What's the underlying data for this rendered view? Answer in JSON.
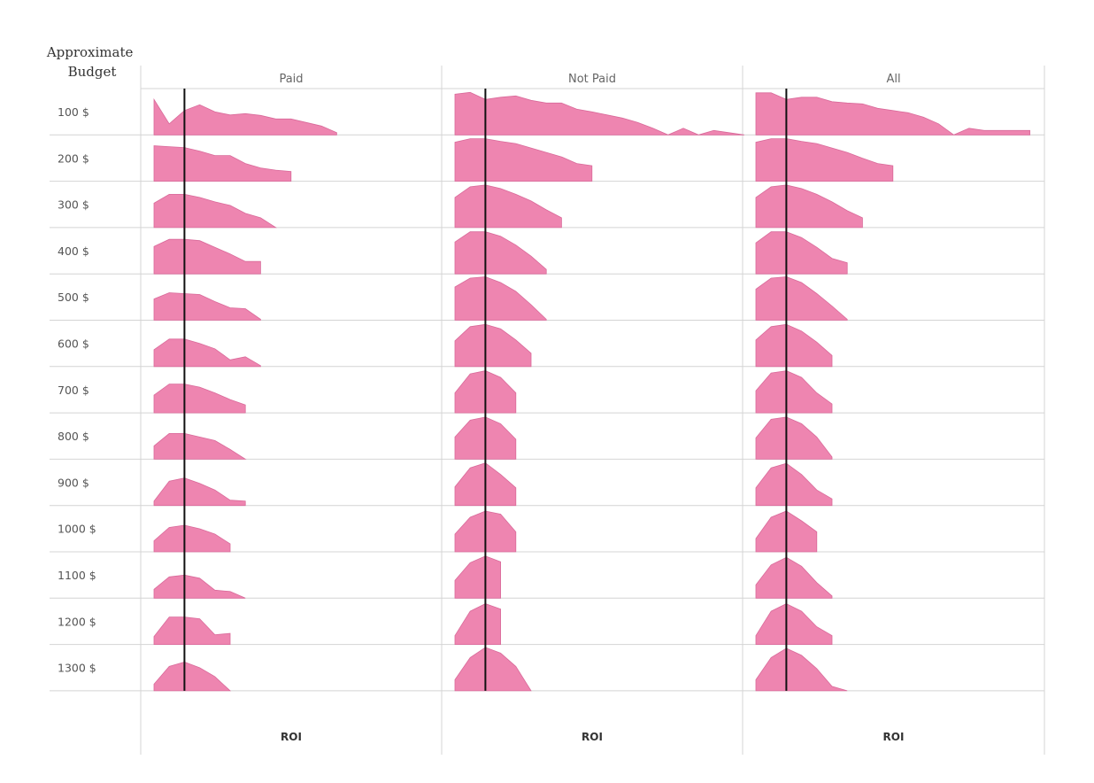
{
  "chart_data": {
    "type": "area",
    "chart_kind": "small-multiple ridgeline density",
    "row_field_title": "Approximate Budget",
    "columns": [
      "Paid",
      "Not Paid",
      "All"
    ],
    "rows": [
      "100 $",
      "200 $",
      "300 $",
      "400 $",
      "500 $",
      "600 $",
      "700 $",
      "800 $",
      "900 $",
      "1000 $",
      "1100 $",
      "1200 $",
      "1300 $"
    ],
    "axis_title": "ROI",
    "x_range": [
      0,
      36
    ],
    "y_range": [
      0,
      1
    ],
    "reference_line_x": 4,
    "grid": true,
    "color": "#ee85b0",
    "reference_line_color": "#111111",
    "panels": {
      "Paid": [
        [
          0.8,
          0.25,
          0.55,
          0.68,
          0.52,
          0.45,
          0.48,
          0.44,
          0.36,
          0.36,
          0.28,
          0.2,
          0.05
        ],
        [
          0.8,
          0.78,
          0.76,
          0.68,
          0.58,
          0.58,
          0.4,
          0.3,
          0.25,
          0.22
        ],
        [
          0.55,
          0.75,
          0.75,
          0.68,
          0.58,
          0.5,
          0.32,
          0.22,
          0.0
        ],
        [
          0.62,
          0.78,
          0.78,
          0.75,
          0.6,
          0.45,
          0.28,
          0.28
        ],
        [
          0.48,
          0.62,
          0.6,
          0.58,
          0.42,
          0.28,
          0.26,
          0.02
        ],
        [
          0.38,
          0.62,
          0.62,
          0.52,
          0.4,
          0.15,
          0.22,
          0.02
        ],
        [
          0.4,
          0.65,
          0.65,
          0.58,
          0.45,
          0.3,
          0.18
        ],
        [
          0.3,
          0.58,
          0.58,
          0.5,
          0.42,
          0.22,
          0.0
        ],
        [
          0.1,
          0.55,
          0.62,
          0.5,
          0.35,
          0.12,
          0.1
        ],
        [
          0.25,
          0.55,
          0.6,
          0.52,
          0.4,
          0.18
        ],
        [
          0.2,
          0.48,
          0.52,
          0.45,
          0.18,
          0.15,
          0.0
        ],
        [
          0.18,
          0.62,
          0.62,
          0.58,
          0.22,
          0.25
        ],
        [
          0.15,
          0.55,
          0.65,
          0.52,
          0.32,
          0.0
        ]
      ],
      "Not Paid": [
        [
          0.92,
          0.96,
          0.8,
          0.85,
          0.88,
          0.78,
          0.72,
          0.72,
          0.58,
          0.52,
          0.45,
          0.38,
          0.28,
          0.15,
          0.0,
          0.15,
          0.0,
          0.1,
          0.05,
          0.0
        ],
        [
          0.88,
          0.96,
          0.96,
          0.9,
          0.85,
          0.75,
          0.65,
          0.55,
          0.4,
          0.35
        ],
        [
          0.68,
          0.92,
          0.96,
          0.88,
          0.75,
          0.6,
          0.4,
          0.22
        ],
        [
          0.72,
          0.95,
          0.95,
          0.85,
          0.65,
          0.4,
          0.1
        ],
        [
          0.75,
          0.95,
          0.98,
          0.85,
          0.65,
          0.35,
          0.02
        ],
        [
          0.58,
          0.9,
          0.95,
          0.85,
          0.6,
          0.3
        ],
        [
          0.45,
          0.88,
          0.95,
          0.8,
          0.45
        ],
        [
          0.5,
          0.88,
          0.95,
          0.8,
          0.45
        ],
        [
          0.42,
          0.85,
          0.96,
          0.7,
          0.4
        ],
        [
          0.4,
          0.78,
          0.92,
          0.85,
          0.45
        ],
        [
          0.4,
          0.8,
          0.95,
          0.82
        ],
        [
          0.2,
          0.75,
          0.92,
          0.8
        ],
        [
          0.25,
          0.75,
          0.98,
          0.85,
          0.55,
          0.0
        ]
      ],
      "All": [
        [
          0.95,
          0.95,
          0.8,
          0.85,
          0.85,
          0.75,
          0.72,
          0.7,
          0.6,
          0.55,
          0.5,
          0.4,
          0.25,
          0.0,
          0.15,
          0.1,
          0.1,
          0.1,
          0.1
        ],
        [
          0.88,
          0.96,
          0.96,
          0.9,
          0.85,
          0.75,
          0.65,
          0.52,
          0.4,
          0.35
        ],
        [
          0.68,
          0.92,
          0.96,
          0.88,
          0.75,
          0.58,
          0.38,
          0.22
        ],
        [
          0.7,
          0.95,
          0.95,
          0.82,
          0.6,
          0.35,
          0.25
        ],
        [
          0.7,
          0.95,
          0.98,
          0.85,
          0.6,
          0.32,
          0.02
        ],
        [
          0.6,
          0.9,
          0.95,
          0.8,
          0.55,
          0.25
        ],
        [
          0.5,
          0.9,
          0.95,
          0.8,
          0.45,
          0.2
        ],
        [
          0.48,
          0.9,
          0.95,
          0.8,
          0.5,
          0.05
        ],
        [
          0.4,
          0.85,
          0.95,
          0.7,
          0.35,
          0.15
        ],
        [
          0.3,
          0.78,
          0.92,
          0.7,
          0.45
        ],
        [
          0.3,
          0.75,
          0.92,
          0.72,
          0.35,
          0.05
        ],
        [
          0.2,
          0.75,
          0.92,
          0.75,
          0.4,
          0.2
        ],
        [
          0.25,
          0.75,
          0.96,
          0.8,
          0.5,
          0.1,
          0.0
        ]
      ]
    }
  }
}
